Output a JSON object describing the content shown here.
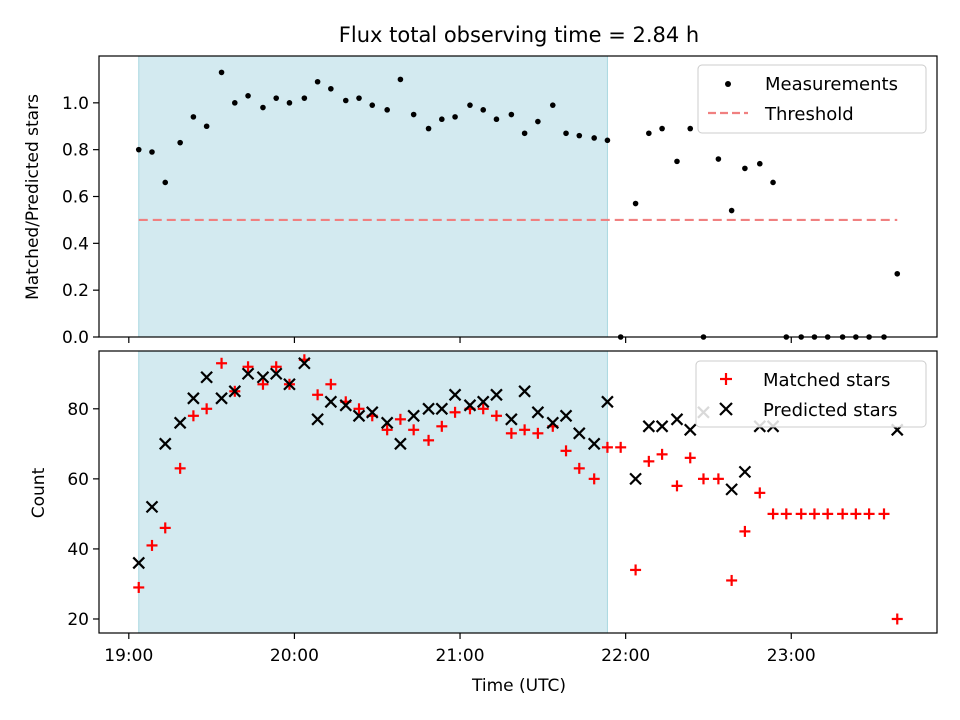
{
  "chart_data": [
    {
      "type": "scatter",
      "title": "Flux total observing time = 2.84 h",
      "xlabel": "",
      "ylabel": "Matched/Predicted stars",
      "x_unit": "hours (UTC)",
      "xlim": [
        18.82,
        23.88
      ],
      "ylim": [
        0,
        1.2
      ],
      "yticks": [
        0.0,
        0.2,
        0.4,
        0.6,
        0.8,
        1.0
      ],
      "ytick_labels": [
        "0.0",
        "0.2",
        "0.4",
        "0.6",
        "0.8",
        "1.0"
      ],
      "xticks": [
        19,
        20,
        21,
        22,
        23
      ],
      "grid": false,
      "shaded_region": {
        "x": [
          19.06,
          21.89
        ],
        "color": "#d3eaf0"
      },
      "legend_position": "top-right",
      "series": [
        {
          "name": "Measurements",
          "marker": "dot",
          "color": "#000000",
          "x": [
            19.06,
            19.14,
            19.22,
            19.31,
            19.39,
            19.47,
            19.56,
            19.64,
            19.72,
            19.81,
            19.89,
            19.97,
            20.06,
            20.14,
            20.22,
            20.31,
            20.39,
            20.47,
            20.56,
            20.64,
            20.72,
            20.81,
            20.89,
            20.97,
            21.06,
            21.14,
            21.22,
            21.31,
            21.39,
            21.47,
            21.56,
            21.64,
            21.72,
            21.81,
            21.89,
            21.97,
            22.06,
            22.14,
            22.22,
            22.31,
            22.39,
            22.47,
            22.56,
            22.64,
            22.72,
            22.81,
            22.89,
            22.97,
            23.06,
            23.14,
            23.22,
            23.31,
            23.39,
            23.47,
            23.56,
            23.64
          ],
          "y": [
            0.8,
            0.79,
            0.66,
            0.83,
            0.94,
            0.9,
            1.13,
            1.0,
            1.03,
            0.98,
            1.02,
            1.0,
            1.02,
            1.09,
            1.06,
            1.01,
            1.02,
            0.99,
            0.97,
            1.1,
            0.95,
            0.89,
            0.93,
            0.94,
            0.99,
            0.97,
            0.93,
            0.95,
            0.87,
            0.92,
            0.99,
            0.87,
            0.86,
            0.85,
            0.84,
            0.0,
            0.57,
            0.87,
            0.89,
            0.75,
            0.89,
            0.0,
            0.76,
            0.54,
            0.72,
            0.74,
            0.66,
            0.0,
            0.0,
            0.0,
            0.0,
            0.0,
            0.0,
            0.0,
            0.0,
            0.27
          ]
        },
        {
          "name": "Threshold",
          "marker": "dashed-line",
          "color": "#f08080",
          "x": [
            19.06,
            23.64
          ],
          "y": [
            0.5,
            0.5
          ]
        }
      ]
    },
    {
      "type": "scatter",
      "title": "",
      "xlabel": "Time (UTC)",
      "ylabel": "Count",
      "x_unit": "hours (UTC)",
      "xlim": [
        18.82,
        23.88
      ],
      "ylim": [
        16,
        96.5
      ],
      "yticks": [
        20,
        40,
        60,
        80
      ],
      "ytick_labels": [
        "20",
        "40",
        "60",
        "80"
      ],
      "xticks": [
        19,
        20,
        21,
        22,
        23
      ],
      "xtick_labels": [
        "19:00",
        "20:00",
        "21:00",
        "22:00",
        "23:00"
      ],
      "grid": false,
      "shaded_region": {
        "x": [
          19.06,
          21.89
        ],
        "color": "#d3eaf0"
      },
      "legend_position": "top-right",
      "series": [
        {
          "name": "Matched stars",
          "marker": "plus",
          "color": "#ff0000",
          "x": [
            19.06,
            19.14,
            19.22,
            19.31,
            19.39,
            19.47,
            19.56,
            19.64,
            19.72,
            19.81,
            19.89,
            19.97,
            20.06,
            20.14,
            20.22,
            20.31,
            20.39,
            20.47,
            20.56,
            20.64,
            20.72,
            20.81,
            20.89,
            20.97,
            21.06,
            21.14,
            21.22,
            21.31,
            21.39,
            21.47,
            21.56,
            21.64,
            21.72,
            21.81,
            21.89,
            21.97,
            22.06,
            22.14,
            22.22,
            22.31,
            22.39,
            22.47,
            22.56,
            22.64,
            22.72,
            22.81,
            22.89,
            22.97,
            23.06,
            23.14,
            23.22,
            23.31,
            23.39,
            23.47,
            23.56,
            23.64
          ],
          "y": [
            29,
            41,
            46,
            63,
            78,
            80,
            93,
            85,
            92,
            87,
            92,
            87,
            94,
            84,
            87,
            82,
            80,
            78,
            74,
            77,
            74,
            71,
            75,
            79,
            80,
            80,
            78,
            73,
            74,
            73,
            75,
            68,
            63,
            60,
            69,
            69,
            34,
            65,
            67,
            58,
            66,
            60,
            60,
            31,
            45,
            56,
            50,
            50,
            50,
            50,
            50,
            50,
            50,
            50,
            50,
            20
          ]
        },
        {
          "name": "Predicted stars",
          "marker": "x",
          "color": "#000000",
          "x": [
            19.06,
            19.14,
            19.22,
            19.31,
            19.39,
            19.47,
            19.56,
            19.64,
            19.72,
            19.81,
            19.89,
            19.97,
            20.06,
            20.14,
            20.22,
            20.31,
            20.39,
            20.47,
            20.56,
            20.64,
            20.72,
            20.81,
            20.89,
            20.97,
            21.06,
            21.14,
            21.22,
            21.31,
            21.39,
            21.47,
            21.56,
            21.64,
            21.72,
            21.81,
            21.89,
            22.06,
            22.14,
            22.22,
            22.31,
            22.39,
            22.47,
            22.64,
            22.72,
            22.81,
            22.89,
            23.64
          ],
          "y": [
            36,
            52,
            70,
            76,
            83,
            89,
            83,
            85,
            90,
            89,
            90,
            87,
            93,
            77,
            82,
            81,
            78,
            79,
            76,
            70,
            78,
            80,
            80,
            84,
            81,
            82,
            84,
            77,
            85,
            79,
            76,
            78,
            73,
            70,
            82,
            60,
            75,
            75,
            77,
            74,
            79,
            57,
            62,
            75,
            75,
            74
          ]
        }
      ]
    }
  ]
}
